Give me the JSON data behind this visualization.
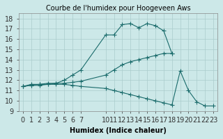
{
  "title": "Courbe de l'humidex pour Hoogeveen Aws",
  "xlabel": "Humidex (Indice chaleur)",
  "ylabel": "",
  "bg_color": "#cce8e8",
  "grid_color": "#aacccc",
  "line_color": "#1a6b6b",
  "xlim": [
    -0.5,
    23.5
  ],
  "ylim": [
    9,
    18.5
  ],
  "yticks": [
    9,
    10,
    11,
    12,
    13,
    14,
    15,
    16,
    17,
    18
  ],
  "xticks": [
    0,
    1,
    2,
    3,
    4,
    5,
    6,
    7,
    10,
    11,
    12,
    13,
    14,
    15,
    16,
    17,
    18,
    19,
    20,
    21,
    22,
    23
  ],
  "line1_x": [
    0,
    1,
    2,
    3,
    4,
    5,
    6,
    7,
    10,
    11,
    12,
    13,
    14,
    15,
    16,
    17,
    18,
    19,
    20,
    21,
    22,
    23
  ],
  "line1_y": [
    11.4,
    11.6,
    11.6,
    11.7,
    11.7,
    12.0,
    12.5,
    13.0,
    16.4,
    16.4,
    17.4,
    17.5,
    17.1,
    17.5,
    17.3,
    16.8,
    14.6,
    null,
    null,
    null,
    null,
    null
  ],
  "line2_x": [
    0,
    1,
    2,
    3,
    4,
    5,
    6,
    7,
    10,
    11,
    12,
    13,
    14,
    15,
    16,
    17,
    18,
    19,
    20,
    21,
    22,
    23
  ],
  "line2_y": [
    11.4,
    11.5,
    11.6,
    11.6,
    11.7,
    11.7,
    11.8,
    11.9,
    12.5,
    13.0,
    13.5,
    13.8,
    14.0,
    14.2,
    14.4,
    14.6,
    14.6,
    null,
    null,
    null,
    null,
    null
  ],
  "line3_x": [
    0,
    1,
    2,
    3,
    4,
    5,
    6,
    7,
    10,
    11,
    12,
    13,
    14,
    15,
    16,
    17,
    18,
    19,
    20,
    21,
    22,
    23
  ],
  "line3_y": [
    11.4,
    11.5,
    11.5,
    11.6,
    11.6,
    11.6,
    11.5,
    11.4,
    11.2,
    11.0,
    10.8,
    10.6,
    10.4,
    10.2,
    10.0,
    9.8,
    9.6,
    12.9,
    11.0,
    9.9,
    9.5,
    9.5
  ],
  "marker_size": 3,
  "font_size": 7
}
